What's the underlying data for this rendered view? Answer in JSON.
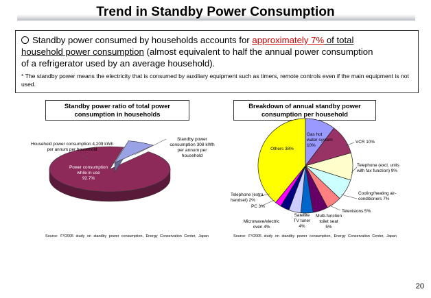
{
  "header": {
    "title": "Trend in Standby Power Consumption"
  },
  "summary": {
    "line1_pre": "Standby power consumed by households  accounts for ",
    "line1_highlight": "approximately 7%",
    "line1_post": " of total",
    "line2_underlined": "household power consumption",
    "line2_rest": " (almost equivalent to half the annual power consumption",
    "line3": "of a refrigerator used by an average household).",
    "note": "* The standby power means the electricity that is consumed by auxiliary equipment such as timers, remote controls even if the main equipment is not used."
  },
  "left_chart": {
    "title": "Standby power ratio of total power consumption in households",
    "household_label": "Household power consumption 4,209 kWh per annum per household",
    "standby_label": "Standby power consumption 308 kWh per annum per household",
    "inuse_line1": "Power consumption",
    "inuse_line2": "while in use",
    "inuse_pct": "92.7%",
    "source": "Source: FY2005 study on standby power consumption, Energy Conservation Center, Japan"
  },
  "right_chart": {
    "title": "Breakdown of annual standby power consumption per household",
    "source": "Source: FY2005 study on standby power consumption, Energy Conservation Center, Japan"
  },
  "chart_data": [
    {
      "type": "pie",
      "title": "Standby power ratio of total power consumption in households",
      "slices": [
        {
          "label": "Power consumption while in use",
          "value": 92.7,
          "color": "#8e2a5a"
        },
        {
          "label": "Standby power consumption",
          "value": 7.3,
          "color": "#9aa2e6"
        }
      ]
    },
    {
      "type": "pie",
      "title": "Breakdown of annual standby power consumption per household",
      "slices": [
        {
          "label": "Gas hot water system 10%",
          "value": 10,
          "color": "#9999ff"
        },
        {
          "label": "VCR 10%",
          "value": 10,
          "color": "#993366"
        },
        {
          "label": "Telephone (excl. units with fax function) 9%",
          "value": 9,
          "color": "#ffffcc"
        },
        {
          "label": "Cooling/heating air-conditioners 7%",
          "value": 7,
          "color": "#ccffff"
        },
        {
          "label": "Televisions 5%",
          "value": 5,
          "color": "#ff8080"
        },
        {
          "label": "Multi-function toilet seat 5%",
          "value": 5,
          "color": "#660066"
        },
        {
          "label": "Satellite TV tuner 4%",
          "value": 4,
          "color": "#0066cc"
        },
        {
          "label": "Microwave/electric oven 4%",
          "value": 4,
          "color": "#ccccff"
        },
        {
          "label": "PC 3%",
          "value": 3,
          "color": "#000080"
        },
        {
          "label": "Telephone (extra handset) 2%",
          "value": 2,
          "color": "#ff00ff"
        },
        {
          "label": "Others 38%",
          "value": 38,
          "color": "#ffff00"
        }
      ]
    }
  ],
  "page": {
    "number": "20"
  }
}
